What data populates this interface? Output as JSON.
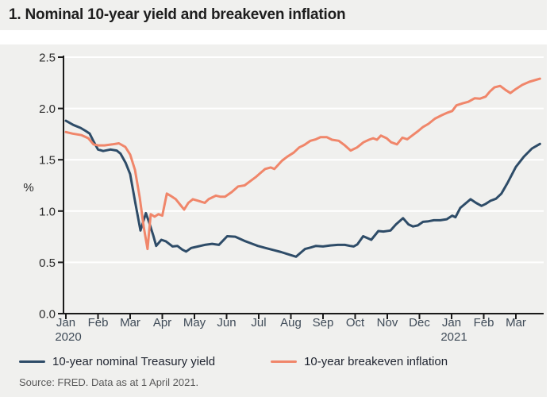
{
  "figure": {
    "title": "1. Nominal 10-year yield and breakeven inflation",
    "source": "Source: FRED. Data as at 1 April 2021."
  },
  "colors": {
    "panel_background": "#f0f0ee",
    "gridline": "#ffffff",
    "axis": "#1a1a1a",
    "month_label": "#3e4a57",
    "value_label": "#2a2a2a",
    "nominal_yield_line": "#2e4c68",
    "breakeven_line": "#f0866a"
  },
  "chart_data": {
    "type": "line",
    "title": "1. Nominal 10-year yield and breakeven inflation",
    "xlabel": "",
    "ylabel": "%",
    "ylim": [
      0.0,
      2.5
    ],
    "grid": "horizontal gridlines on",
    "legend_position": "bottom",
    "x_axis_note": "x values are months since Jan 2020 (0 = Jan 2020, 14 = Mar 2021); data through 1 April 2021",
    "x_tick_labels": [
      "Jan",
      "Feb",
      "Mar",
      "Apr",
      "May",
      "Jun",
      "Jul",
      "Aug",
      "Sep",
      "Oct",
      "Nov",
      "Dec",
      "Jan",
      "Feb",
      "Mar"
    ],
    "x_tick_years": [
      {
        "index": 0,
        "label": "2020"
      },
      {
        "index": 12,
        "label": "2021"
      }
    ],
    "y_ticks": [
      0.0,
      0.5,
      1.0,
      1.5,
      2.0,
      2.5
    ],
    "y_tick_labels": [
      "0.0",
      "0.5",
      "1.0",
      "1.5",
      "2.0",
      "2.5"
    ],
    "series": [
      {
        "id": "nominal-treasury-yield",
        "name": "10-year nominal Treasury yield",
        "color": "#2e4c68",
        "points": [
          [
            0,
            1.88
          ],
          [
            0.23,
            1.84
          ],
          [
            0.46,
            1.81
          ],
          [
            0.62,
            1.78
          ],
          [
            0.74,
            1.755
          ],
          [
            0.86,
            1.68
          ],
          [
            1,
            1.6
          ],
          [
            1.16,
            1.585
          ],
          [
            1.39,
            1.6
          ],
          [
            1.58,
            1.59
          ],
          [
            1.7,
            1.56
          ],
          [
            1.86,
            1.47
          ],
          [
            2,
            1.36
          ],
          [
            2.16,
            1.08
          ],
          [
            2.32,
            0.81
          ],
          [
            2.49,
            0.98
          ],
          [
            2.6,
            0.88
          ],
          [
            2.72,
            0.76
          ],
          [
            2.81,
            0.66
          ],
          [
            2.97,
            0.72
          ],
          [
            3.11,
            0.705
          ],
          [
            3.32,
            0.655
          ],
          [
            3.47,
            0.66
          ],
          [
            3.62,
            0.625
          ],
          [
            3.74,
            0.605
          ],
          [
            3.9,
            0.64
          ],
          [
            4.11,
            0.655
          ],
          [
            4.32,
            0.67
          ],
          [
            4.55,
            0.68
          ],
          [
            4.76,
            0.67
          ],
          [
            5.02,
            0.755
          ],
          [
            5.27,
            0.75
          ],
          [
            5.55,
            0.71
          ],
          [
            5.76,
            0.685
          ],
          [
            5.97,
            0.66
          ],
          [
            6.21,
            0.64
          ],
          [
            6.46,
            0.62
          ],
          [
            6.7,
            0.6
          ],
          [
            6.95,
            0.575
          ],
          [
            7.16,
            0.555
          ],
          [
            7.44,
            0.63
          ],
          [
            7.62,
            0.645
          ],
          [
            7.78,
            0.66
          ],
          [
            8,
            0.655
          ],
          [
            8.23,
            0.665
          ],
          [
            8.46,
            0.67
          ],
          [
            8.68,
            0.67
          ],
          [
            8.84,
            0.66
          ],
          [
            8.95,
            0.655
          ],
          [
            9.07,
            0.675
          ],
          [
            9.25,
            0.755
          ],
          [
            9.39,
            0.735
          ],
          [
            9.5,
            0.72
          ],
          [
            9.72,
            0.805
          ],
          [
            9.88,
            0.8
          ],
          [
            10.1,
            0.81
          ],
          [
            10.27,
            0.87
          ],
          [
            10.49,
            0.93
          ],
          [
            10.66,
            0.87
          ],
          [
            10.8,
            0.85
          ],
          [
            10.95,
            0.86
          ],
          [
            11.11,
            0.895
          ],
          [
            11.28,
            0.9
          ],
          [
            11.45,
            0.91
          ],
          [
            11.65,
            0.91
          ],
          [
            11.85,
            0.92
          ],
          [
            12.02,
            0.955
          ],
          [
            12.12,
            0.94
          ],
          [
            12.27,
            1.03
          ],
          [
            12.59,
            1.115
          ],
          [
            12.76,
            1.08
          ],
          [
            12.93,
            1.05
          ],
          [
            13.06,
            1.07
          ],
          [
            13.21,
            1.1
          ],
          [
            13.38,
            1.12
          ],
          [
            13.55,
            1.17
          ],
          [
            13.75,
            1.28
          ],
          [
            14,
            1.43
          ],
          [
            14.25,
            1.53
          ],
          [
            14.5,
            1.61
          ],
          [
            14.75,
            1.655
          ]
        ]
      },
      {
        "id": "breakeven-inflation",
        "name": "10-year breakeven inflation",
        "color": "#f0866a",
        "points": [
          [
            0,
            1.77
          ],
          [
            0.21,
            1.755
          ],
          [
            0.49,
            1.74
          ],
          [
            0.7,
            1.71
          ],
          [
            0.86,
            1.65
          ],
          [
            1,
            1.64
          ],
          [
            1.2,
            1.64
          ],
          [
            1.45,
            1.65
          ],
          [
            1.65,
            1.66
          ],
          [
            1.85,
            1.625
          ],
          [
            2,
            1.55
          ],
          [
            2.15,
            1.4
          ],
          [
            2.3,
            1.13
          ],
          [
            2.42,
            0.85
          ],
          [
            2.54,
            0.63
          ],
          [
            2.64,
            0.97
          ],
          [
            2.76,
            0.945
          ],
          [
            2.88,
            0.97
          ],
          [
            3,
            0.955
          ],
          [
            3.14,
            1.17
          ],
          [
            3.28,
            1.145
          ],
          [
            3.42,
            1.115
          ],
          [
            3.56,
            1.06
          ],
          [
            3.68,
            1.015
          ],
          [
            3.81,
            1.08
          ],
          [
            3.95,
            1.115
          ],
          [
            4.12,
            1.1
          ],
          [
            4.32,
            1.08
          ],
          [
            4.44,
            1.115
          ],
          [
            4.67,
            1.15
          ],
          [
            4.8,
            1.14
          ],
          [
            4.95,
            1.14
          ],
          [
            5.16,
            1.185
          ],
          [
            5.36,
            1.24
          ],
          [
            5.56,
            1.25
          ],
          [
            5.73,
            1.29
          ],
          [
            5.9,
            1.33
          ],
          [
            6.05,
            1.37
          ],
          [
            6.2,
            1.41
          ],
          [
            6.37,
            1.425
          ],
          [
            6.49,
            1.41
          ],
          [
            6.72,
            1.49
          ],
          [
            6.89,
            1.53
          ],
          [
            7.09,
            1.57
          ],
          [
            7.26,
            1.62
          ],
          [
            7.42,
            1.645
          ],
          [
            7.61,
            1.685
          ],
          [
            7.78,
            1.7
          ],
          [
            7.92,
            1.72
          ],
          [
            8.12,
            1.72
          ],
          [
            8.28,
            1.695
          ],
          [
            8.49,
            1.685
          ],
          [
            8.68,
            1.64
          ],
          [
            8.86,
            1.59
          ],
          [
            9.06,
            1.62
          ],
          [
            9.26,
            1.67
          ],
          [
            9.43,
            1.695
          ],
          [
            9.56,
            1.71
          ],
          [
            9.68,
            1.695
          ],
          [
            9.8,
            1.735
          ],
          [
            9.98,
            1.71
          ],
          [
            10.12,
            1.67
          ],
          [
            10.3,
            1.65
          ],
          [
            10.47,
            1.715
          ],
          [
            10.62,
            1.7
          ],
          [
            10.79,
            1.74
          ],
          [
            10.96,
            1.78
          ],
          [
            11.11,
            1.82
          ],
          [
            11.28,
            1.85
          ],
          [
            11.48,
            1.9
          ],
          [
            11.7,
            1.935
          ],
          [
            11.88,
            1.96
          ],
          [
            12.02,
            1.975
          ],
          [
            12.15,
            2.03
          ],
          [
            12.35,
            2.05
          ],
          [
            12.52,
            2.065
          ],
          [
            12.72,
            2.1
          ],
          [
            12.88,
            2.095
          ],
          [
            13.06,
            2.115
          ],
          [
            13.19,
            2.165
          ],
          [
            13.33,
            2.205
          ],
          [
            13.51,
            2.22
          ],
          [
            13.68,
            2.18
          ],
          [
            13.83,
            2.15
          ],
          [
            14,
            2.19
          ],
          [
            14.2,
            2.23
          ],
          [
            14.42,
            2.26
          ],
          [
            14.75,
            2.29
          ]
        ]
      }
    ]
  }
}
